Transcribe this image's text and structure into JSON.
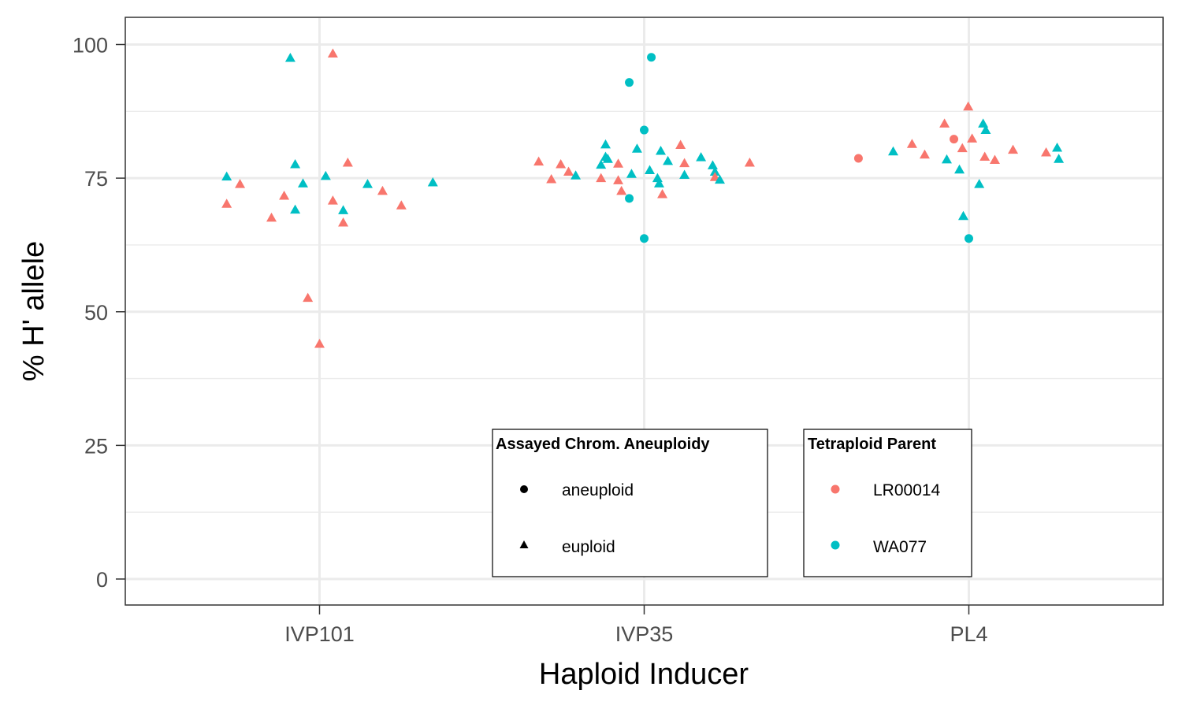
{
  "chart_data": {
    "type": "scatter",
    "title": "",
    "xlabel": "Haploid Inducer",
    "ylabel": "% H' allele",
    "categories": [
      "IVP101",
      "IVP35",
      "PL4"
    ],
    "ylim": [
      -5,
      105
    ],
    "yticks": [
      "0",
      "25",
      "50",
      "75",
      "100"
    ],
    "grid": true,
    "shape_legend": {
      "title": "Assayed Chrom. Aneuploidy",
      "items": [
        {
          "key": "aneuploid",
          "label": "aneuploid"
        },
        {
          "key": "euploid",
          "label": "euploid"
        }
      ]
    },
    "color_legend": {
      "title": "Tetraploid Parent",
      "items": [
        {
          "key": "LR00014",
          "label": "LR00014",
          "color": "#F8766D"
        },
        {
          "key": "WA077",
          "label": "WA077",
          "color": "#00BFC4"
        }
      ]
    },
    "points": [
      {
        "x": -0.286,
        "y": 70.2,
        "parent": "LR00014",
        "ploidy": "euploid"
      },
      {
        "x": -0.286,
        "y": 75.3,
        "parent": "WA077",
        "ploidy": "euploid"
      },
      {
        "x": -0.245,
        "y": 73.9,
        "parent": "LR00014",
        "ploidy": "euploid"
      },
      {
        "x": -0.148,
        "y": 67.6,
        "parent": "LR00014",
        "ploidy": "euploid"
      },
      {
        "x": -0.109,
        "y": 71.7,
        "parent": "LR00014",
        "ploidy": "euploid"
      },
      {
        "x": -0.09,
        "y": 97.5,
        "parent": "WA077",
        "ploidy": "euploid"
      },
      {
        "x": -0.075,
        "y": 77.6,
        "parent": "WA077",
        "ploidy": "euploid"
      },
      {
        "x": -0.075,
        "y": 69.1,
        "parent": "WA077",
        "ploidy": "euploid"
      },
      {
        "x": -0.051,
        "y": 74.0,
        "parent": "WA077",
        "ploidy": "euploid"
      },
      {
        "x": -0.036,
        "y": 52.6,
        "parent": "LR00014",
        "ploidy": "euploid"
      },
      {
        "x": 0.0,
        "y": 44.0,
        "parent": "LR00014",
        "ploidy": "euploid"
      },
      {
        "x": 0.019,
        "y": 75.4,
        "parent": "WA077",
        "ploidy": "euploid"
      },
      {
        "x": 0.041,
        "y": 98.3,
        "parent": "LR00014",
        "ploidy": "euploid"
      },
      {
        "x": 0.041,
        "y": 70.8,
        "parent": "LR00014",
        "ploidy": "euploid"
      },
      {
        "x": 0.073,
        "y": 66.7,
        "parent": "LR00014",
        "ploidy": "euploid"
      },
      {
        "x": 0.073,
        "y": 69.0,
        "parent": "WA077",
        "ploidy": "euploid"
      },
      {
        "x": 0.087,
        "y": 77.9,
        "parent": "LR00014",
        "ploidy": "euploid"
      },
      {
        "x": 0.148,
        "y": 73.9,
        "parent": "WA077",
        "ploidy": "euploid"
      },
      {
        "x": 0.194,
        "y": 72.6,
        "parent": "LR00014",
        "ploidy": "euploid"
      },
      {
        "x": 0.252,
        "y": 69.9,
        "parent": "LR00014",
        "ploidy": "euploid"
      },
      {
        "x": 0.349,
        "y": 74.2,
        "parent": "WA077",
        "ploidy": "euploid"
      },
      {
        "x": 0.675,
        "y": 78.1,
        "parent": "LR00014",
        "ploidy": "euploid"
      },
      {
        "x": 0.714,
        "y": 74.8,
        "parent": "LR00014",
        "ploidy": "euploid"
      },
      {
        "x": 0.743,
        "y": 77.6,
        "parent": "LR00014",
        "ploidy": "euploid"
      },
      {
        "x": 0.767,
        "y": 76.2,
        "parent": "LR00014",
        "ploidy": "euploid"
      },
      {
        "x": 0.789,
        "y": 75.5,
        "parent": "WA077",
        "ploidy": "euploid"
      },
      {
        "x": 0.867,
        "y": 77.5,
        "parent": "WA077",
        "ploidy": "euploid"
      },
      {
        "x": 0.867,
        "y": 75.0,
        "parent": "LR00014",
        "ploidy": "euploid"
      },
      {
        "x": 0.881,
        "y": 81.3,
        "parent": "WA077",
        "ploidy": "euploid"
      },
      {
        "x": 0.881,
        "y": 79.0,
        "parent": "WA077",
        "ploidy": "euploid"
      },
      {
        "x": 0.888,
        "y": 78.6,
        "parent": "WA077",
        "ploidy": "euploid"
      },
      {
        "x": 0.92,
        "y": 77.7,
        "parent": "LR00014",
        "ploidy": "euploid"
      },
      {
        "x": 0.92,
        "y": 74.6,
        "parent": "LR00014",
        "ploidy": "euploid"
      },
      {
        "x": 0.93,
        "y": 72.6,
        "parent": "LR00014",
        "ploidy": "euploid"
      },
      {
        "x": 0.954,
        "y": 71.2,
        "parent": "WA077",
        "ploidy": "aneuploid"
      },
      {
        "x": 0.961,
        "y": 75.8,
        "parent": "WA077",
        "ploidy": "euploid"
      },
      {
        "x": 0.954,
        "y": 92.9,
        "parent": "WA077",
        "ploidy": "aneuploid"
      },
      {
        "x": 0.978,
        "y": 80.5,
        "parent": "WA077",
        "ploidy": "euploid"
      },
      {
        "x": 1.0,
        "y": 84.0,
        "parent": "WA077",
        "ploidy": "aneuploid"
      },
      {
        "x": 1.0,
        "y": 63.7,
        "parent": "WA077",
        "ploidy": "aneuploid"
      },
      {
        "x": 1.017,
        "y": 76.5,
        "parent": "WA077",
        "ploidy": "euploid"
      },
      {
        "x": 1.022,
        "y": 97.6,
        "parent": "WA077",
        "ploidy": "aneuploid"
      },
      {
        "x": 1.041,
        "y": 75.0,
        "parent": "WA077",
        "ploidy": "euploid"
      },
      {
        "x": 1.046,
        "y": 74.0,
        "parent": "WA077",
        "ploidy": "euploid"
      },
      {
        "x": 1.051,
        "y": 80.1,
        "parent": "WA077",
        "ploidy": "euploid"
      },
      {
        "x": 1.056,
        "y": 72.0,
        "parent": "LR00014",
        "ploidy": "euploid"
      },
      {
        "x": 1.073,
        "y": 78.2,
        "parent": "WA077",
        "ploidy": "euploid"
      },
      {
        "x": 1.112,
        "y": 81.2,
        "parent": "LR00014",
        "ploidy": "euploid"
      },
      {
        "x": 1.124,
        "y": 77.8,
        "parent": "LR00014",
        "ploidy": "euploid"
      },
      {
        "x": 1.124,
        "y": 75.6,
        "parent": "WA077",
        "ploidy": "euploid"
      },
      {
        "x": 1.175,
        "y": 78.9,
        "parent": "WA077",
        "ploidy": "euploid"
      },
      {
        "x": 1.211,
        "y": 77.4,
        "parent": "WA077",
        "ploidy": "euploid"
      },
      {
        "x": 1.218,
        "y": 76.2,
        "parent": "WA077",
        "ploidy": "euploid"
      },
      {
        "x": 1.218,
        "y": 75.2,
        "parent": "LR00014",
        "ploidy": "euploid"
      },
      {
        "x": 1.233,
        "y": 74.7,
        "parent": "WA077",
        "ploidy": "euploid"
      },
      {
        "x": 1.325,
        "y": 77.9,
        "parent": "LR00014",
        "ploidy": "euploid"
      },
      {
        "x": 1.66,
        "y": 78.7,
        "parent": "LR00014",
        "ploidy": "aneuploid"
      },
      {
        "x": 1.767,
        "y": 80.0,
        "parent": "WA077",
        "ploidy": "euploid"
      },
      {
        "x": 1.825,
        "y": 81.4,
        "parent": "LR00014",
        "ploidy": "euploid"
      },
      {
        "x": 1.864,
        "y": 79.4,
        "parent": "LR00014",
        "ploidy": "euploid"
      },
      {
        "x": 1.925,
        "y": 85.2,
        "parent": "LR00014",
        "ploidy": "euploid"
      },
      {
        "x": 1.932,
        "y": 78.5,
        "parent": "WA077",
        "ploidy": "euploid"
      },
      {
        "x": 1.954,
        "y": 82.3,
        "parent": "LR00014",
        "ploidy": "aneuploid"
      },
      {
        "x": 1.971,
        "y": 76.6,
        "parent": "WA077",
        "ploidy": "euploid"
      },
      {
        "x": 1.98,
        "y": 80.6,
        "parent": "LR00014",
        "ploidy": "euploid"
      },
      {
        "x": 1.983,
        "y": 67.9,
        "parent": "WA077",
        "ploidy": "euploid"
      },
      {
        "x": 1.998,
        "y": 88.4,
        "parent": "LR00014",
        "ploidy": "euploid"
      },
      {
        "x": 2.0,
        "y": 63.7,
        "parent": "WA077",
        "ploidy": "aneuploid"
      },
      {
        "x": 2.01,
        "y": 82.4,
        "parent": "LR00014",
        "ploidy": "euploid"
      },
      {
        "x": 2.032,
        "y": 73.9,
        "parent": "WA077",
        "ploidy": "euploid"
      },
      {
        "x": 2.044,
        "y": 85.2,
        "parent": "WA077",
        "ploidy": "euploid"
      },
      {
        "x": 2.049,
        "y": 79.0,
        "parent": "LR00014",
        "ploidy": "euploid"
      },
      {
        "x": 2.052,
        "y": 84.0,
        "parent": "WA077",
        "ploidy": "euploid"
      },
      {
        "x": 2.08,
        "y": 78.4,
        "parent": "LR00014",
        "ploidy": "euploid"
      },
      {
        "x": 2.136,
        "y": 80.3,
        "parent": "LR00014",
        "ploidy": "euploid"
      },
      {
        "x": 2.238,
        "y": 79.8,
        "parent": "LR00014",
        "ploidy": "euploid"
      },
      {
        "x": 2.272,
        "y": 80.7,
        "parent": "WA077",
        "ploidy": "euploid"
      },
      {
        "x": 2.277,
        "y": 78.6,
        "parent": "WA077",
        "ploidy": "euploid"
      }
    ]
  }
}
